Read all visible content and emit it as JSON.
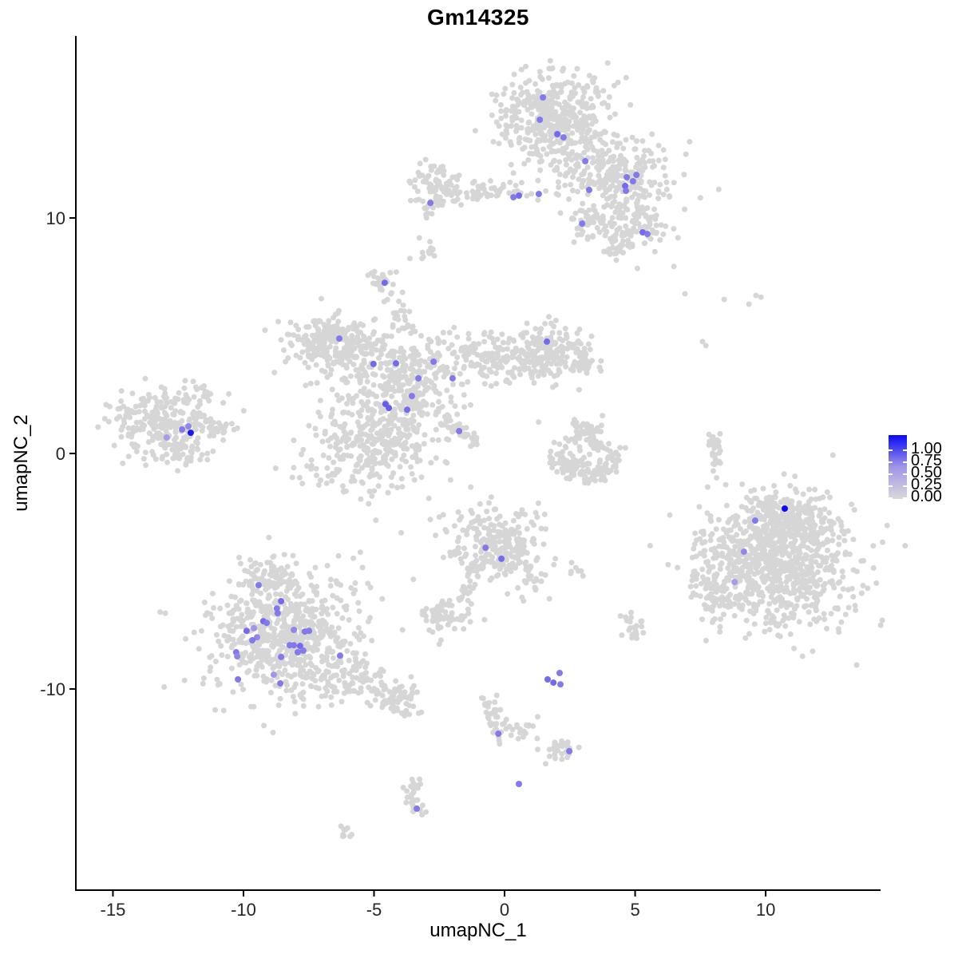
{
  "chart_data": {
    "type": "scatter",
    "title": "Gm14325",
    "xlabel": "umapNC_1",
    "ylabel": "umapNC_2",
    "xlim": [
      -16.42,
      14.4
    ],
    "ylim": [
      -18.54,
      17.73
    ],
    "x_ticks": [
      -15,
      -10,
      -5,
      0,
      5,
      10
    ],
    "y_ticks": [
      -10,
      0,
      10
    ],
    "grid": false,
    "legend_position": "right",
    "legend_ticks": [
      "1.00",
      "0.75",
      "0.50",
      "0.25",
      "0.00"
    ],
    "point_radius_px": 3.5,
    "highlight_radius_px": 4.0,
    "colors": {
      "background": "#ffffff",
      "axis": "#000000",
      "base_point": "#d6d6d6",
      "ramp": [
        [
          0.0,
          "#d9d9d9"
        ],
        [
          0.5,
          "#a195e8"
        ],
        [
          1.0,
          "#0a0af5"
        ]
      ]
    },
    "clusters": [
      {
        "type": "gauss",
        "x": 1.93,
        "y": 14.17,
        "sx": 0.98,
        "sy": 0.92,
        "n": 460
      },
      {
        "type": "gauss",
        "x": 4.37,
        "y": 11.97,
        "sx": 1.01,
        "sy": 0.75,
        "n": 240
      },
      {
        "type": "gauss",
        "x": 4.98,
        "y": 9.76,
        "sx": 0.76,
        "sy": 0.61,
        "n": 120
      },
      {
        "type": "gauss",
        "x": 3.09,
        "y": 10.03,
        "sx": 0.31,
        "sy": 0.41,
        "n": 40
      },
      {
        "type": "gauss",
        "x": -0.61,
        "y": 11.12,
        "sx": 0.8,
        "sy": 0.24,
        "n": 55
      },
      {
        "type": "gauss",
        "x": -2.57,
        "y": 11.39,
        "sx": 0.49,
        "sy": 0.47,
        "n": 75
      },
      {
        "type": "gauss",
        "x": -2.91,
        "y": 10.37,
        "sx": 0.12,
        "sy": 0.27,
        "n": 8
      },
      {
        "type": "gauss",
        "x": 4.37,
        "y": 8.75,
        "sx": 0.37,
        "sy": 0.27,
        "n": 25
      },
      {
        "type": "gauss",
        "x": -4.65,
        "y": 7.32,
        "sx": 0.24,
        "sy": 0.31,
        "n": 28
      },
      {
        "type": "line",
        "x1": -4.19,
        "y1": 6.71,
        "x2": -3.73,
        "y2": 4.85,
        "j": 0.22,
        "n": 22
      },
      {
        "type": "gauss",
        "x": -6.24,
        "y": 4.51,
        "sx": 0.92,
        "sy": 0.61,
        "n": 200
      },
      {
        "type": "gauss",
        "x": -7.25,
        "y": 5.02,
        "sx": 0.55,
        "sy": 0.41,
        "n": 70
      },
      {
        "type": "gauss",
        "x": -3.88,
        "y": 2.98,
        "sx": 1.07,
        "sy": 0.95,
        "n": 300
      },
      {
        "type": "gauss",
        "x": -5.11,
        "y": 0.44,
        "sx": 1.22,
        "sy": 1.02,
        "n": 330
      },
      {
        "type": "gauss",
        "x": -0.21,
        "y": 4.17,
        "sx": 1.38,
        "sy": 0.54,
        "n": 200
      },
      {
        "type": "gauss",
        "x": 1.71,
        "y": 4.34,
        "sx": 0.67,
        "sy": 0.61,
        "n": 140
      },
      {
        "type": "gauss",
        "x": 3.0,
        "y": 3.83,
        "sx": 0.37,
        "sy": 0.34,
        "n": 35
      },
      {
        "type": "line",
        "x1": -2.6,
        "y1": 1.73,
        "x2": -0.89,
        "y2": 0.27,
        "j": 0.15,
        "n": 40
      },
      {
        "type": "gauss",
        "x": -13.06,
        "y": 1.29,
        "sx": 0.98,
        "sy": 0.75,
        "n": 260
      },
      {
        "type": "line",
        "x1": -11.38,
        "y1": 1.12,
        "x2": -10.61,
        "y2": 0.95,
        "j": 0.18,
        "n": 25
      },
      {
        "type": "gauss",
        "x": -11.62,
        "y": 2.64,
        "sx": 0.18,
        "sy": 0.17,
        "n": 10
      },
      {
        "type": "gauss",
        "x": -12.29,
        "y": -0.07,
        "sx": 0.55,
        "sy": 0.27,
        "n": 28
      },
      {
        "type": "gauss",
        "x": 3.09,
        "y": 0.78,
        "sx": 0.43,
        "sy": 0.34,
        "n": 55
      },
      {
        "type": "gauss",
        "x": 3.0,
        "y": -0.07,
        "sx": 0.67,
        "sy": 0.41,
        "n": 35
      },
      {
        "type": "line",
        "x1": 1.93,
        "y1": -0.24,
        "x2": 3.3,
        "y2": -1.08,
        "j": 0.25,
        "n": 60
      },
      {
        "type": "line",
        "x1": 3.3,
        "y1": -1.08,
        "x2": 4.53,
        "y2": -0.14,
        "j": 0.22,
        "n": 45
      },
      {
        "type": "line",
        "x1": 7.98,
        "y1": 0.95,
        "x2": 8.13,
        "y2": -0.58,
        "j": 0.12,
        "n": 32
      },
      {
        "type": "gauss",
        "x": 10.49,
        "y": -4.64,
        "sx": 1.47,
        "sy": 1.36,
        "n": 850
      },
      {
        "type": "gauss",
        "x": 10.64,
        "y": -2.78,
        "sx": 0.92,
        "sy": 0.61,
        "n": 180
      },
      {
        "type": "gauss",
        "x": 8.2,
        "y": -5.32,
        "sx": 0.46,
        "sy": 0.85,
        "n": 70
      },
      {
        "type": "gauss",
        "x": 8.5,
        "y": -3.8,
        "sx": 0.24,
        "sy": 0.68,
        "n": 8
      },
      {
        "type": "gauss",
        "x": -0.21,
        "y": -3.97,
        "sx": 0.92,
        "sy": 0.85,
        "n": 260
      },
      {
        "type": "line",
        "x1": 0.7,
        "y1": -4.47,
        "x2": 1.16,
        "y2": -5.83,
        "j": 0.18,
        "n": 16
      },
      {
        "type": "line",
        "x1": -0.98,
        "y1": -4.64,
        "x2": -1.68,
        "y2": -6.27,
        "j": 0.15,
        "n": 26
      },
      {
        "type": "gauss",
        "x": -2.45,
        "y": -6.92,
        "sx": 0.43,
        "sy": 0.37,
        "n": 55
      },
      {
        "type": "gauss",
        "x": -1.44,
        "y": -7.02,
        "sx": 0.37,
        "sy": 0.27,
        "n": 9
      },
      {
        "type": "gauss",
        "x": -8.47,
        "y": -7.69,
        "sx": 1.38,
        "sy": 1.36,
        "n": 650
      },
      {
        "type": "gauss",
        "x": -8.93,
        "y": -5.32,
        "sx": 0.55,
        "sy": 0.41,
        "n": 70
      },
      {
        "type": "gauss",
        "x": -5.72,
        "y": -9.73,
        "sx": 0.76,
        "sy": 0.51,
        "n": 90
      },
      {
        "type": "gauss",
        "x": -4.19,
        "y": -10.51,
        "sx": 0.55,
        "sy": 0.34,
        "n": 55
      },
      {
        "type": "line",
        "x1": -0.73,
        "y1": -10.31,
        "x2": -0.06,
        "y2": -12.2,
        "j": 0.18,
        "n": 38
      },
      {
        "type": "gauss",
        "x": 0.55,
        "y": -11.83,
        "sx": 0.31,
        "sy": 0.2,
        "n": 16
      },
      {
        "type": "gauss",
        "x": 2.17,
        "y": -12.54,
        "sx": 0.34,
        "sy": 0.24,
        "n": 30
      },
      {
        "type": "line",
        "x1": -3.3,
        "y1": -13.69,
        "x2": -3.67,
        "y2": -14.47,
        "j": 0.15,
        "n": 14
      },
      {
        "type": "line",
        "x1": -3.67,
        "y1": -14.47,
        "x2": -3.21,
        "y2": -15.25,
        "j": 0.15,
        "n": 16
      },
      {
        "type": "gauss",
        "x": -6.09,
        "y": -16.07,
        "sx": 0.18,
        "sy": 0.14,
        "n": 9
      },
      {
        "type": "gauss",
        "x": -2.97,
        "y": 8.68,
        "sx": 0.24,
        "sy": 0.24,
        "n": 13
      },
      {
        "type": "gauss",
        "x": 4.83,
        "y": -7.36,
        "sx": 0.31,
        "sy": 0.41,
        "n": 22
      },
      {
        "type": "gauss",
        "x": 2.69,
        "y": -5.12,
        "sx": 0.18,
        "sy": 0.14,
        "n": 6
      }
    ],
    "singles": [
      [
        6.91,
        6.78
      ],
      [
        8.41,
        6.54
      ],
      [
        9.63,
        6.71
      ],
      [
        9.36,
        6.34
      ],
      [
        9.82,
        6.64
      ],
      [
        7.58,
        4.75
      ],
      [
        7.71,
        4.58
      ],
      [
        8.2,
        0.51
      ],
      [
        8.26,
        -0.41
      ],
      [
        1.25,
        -12.1
      ]
    ],
    "expressing_points": [
      [
        1.47,
        15.12,
        0.6
      ],
      [
        1.35,
        14.17,
        0.6
      ],
      [
        2.02,
        13.56,
        0.65
      ],
      [
        2.26,
        13.42,
        0.6
      ],
      [
        3.09,
        12.41,
        0.6
      ],
      [
        5.05,
        11.83,
        0.6
      ],
      [
        4.68,
        11.73,
        0.6
      ],
      [
        4.92,
        11.56,
        0.6
      ],
      [
        4.62,
        11.36,
        0.65
      ],
      [
        4.65,
        11.15,
        0.6
      ],
      [
        3.24,
        11.19,
        0.6
      ],
      [
        1.31,
        11.02,
        0.6
      ],
      [
        0.55,
        10.95,
        0.65
      ],
      [
        0.34,
        10.88,
        0.6
      ],
      [
        2.97,
        9.76,
        0.6
      ],
      [
        5.29,
        9.39,
        0.65
      ],
      [
        5.47,
        9.32,
        0.6
      ],
      [
        -2.84,
        10.64,
        0.6
      ],
      [
        -4.59,
        7.25,
        0.65
      ],
      [
        -6.33,
        4.88,
        0.6
      ],
      [
        -5.02,
        3.8,
        0.65
      ],
      [
        -4.16,
        3.83,
        0.65
      ],
      [
        -2.72,
        3.9,
        0.6
      ],
      [
        -3.3,
        3.19,
        0.6
      ],
      [
        -1.99,
        3.19,
        0.6
      ],
      [
        -3.55,
        2.44,
        0.6
      ],
      [
        -4.56,
        2.1,
        0.7
      ],
      [
        -4.43,
        1.93,
        0.7
      ],
      [
        -3.73,
        1.86,
        0.65
      ],
      [
        -1.74,
        0.95,
        0.6
      ],
      [
        1.62,
        4.75,
        0.65
      ],
      [
        -12.35,
        1.02,
        0.6
      ],
      [
        -12.11,
        1.15,
        0.55
      ],
      [
        -12.02,
        0.88,
        0.95
      ],
      [
        -12.94,
        0.68,
        0.45
      ],
      [
        10.73,
        -2.34,
        1.0
      ],
      [
        9.6,
        -2.85,
        0.6
      ],
      [
        9.17,
        -4.17,
        0.55
      ],
      [
        8.81,
        -5.46,
        0.45
      ],
      [
        -0.73,
        -4.0,
        0.6
      ],
      [
        -0.12,
        -4.47,
        0.65
      ],
      [
        -9.42,
        -5.59,
        0.6
      ],
      [
        -8.56,
        -6.27,
        0.65
      ],
      [
        -8.72,
        -6.58,
        0.6
      ],
      [
        -8.69,
        -6.78,
        0.6
      ],
      [
        -9.24,
        -7.12,
        0.65
      ],
      [
        -9.11,
        -7.19,
        0.6
      ],
      [
        -9.88,
        -7.53,
        0.65
      ],
      [
        -9.6,
        -7.42,
        0.5
      ],
      [
        -8.07,
        -7.49,
        0.55
      ],
      [
        -7.65,
        -7.56,
        0.6
      ],
      [
        -7.49,
        -7.53,
        0.6
      ],
      [
        -9.48,
        -7.8,
        0.55
      ],
      [
        -9.66,
        -7.93,
        0.6
      ],
      [
        -10.28,
        -8.44,
        0.6
      ],
      [
        -10.24,
        -8.61,
        0.55
      ],
      [
        -8.23,
        -8.14,
        0.6
      ],
      [
        -8.07,
        -8.14,
        0.6
      ],
      [
        -7.83,
        -8.17,
        0.65
      ],
      [
        -7.71,
        -8.37,
        0.6
      ],
      [
        -7.92,
        -8.44,
        0.6
      ],
      [
        -8.56,
        -8.64,
        0.6
      ],
      [
        -6.3,
        -8.58,
        0.6
      ],
      [
        -10.21,
        -9.59,
        0.6
      ],
      [
        -8.84,
        -9.39,
        0.5
      ],
      [
        -8.59,
        -9.76,
        0.6
      ],
      [
        1.65,
        -9.59,
        0.65
      ],
      [
        1.87,
        -9.73,
        0.65
      ],
      [
        2.14,
        -9.8,
        0.6
      ],
      [
        2.11,
        -9.32,
        0.6
      ],
      [
        -0.24,
        -11.9,
        0.6
      ],
      [
        2.48,
        -12.64,
        0.6
      ],
      [
        0.55,
        -14.03,
        0.6
      ],
      [
        -3.36,
        -15.08,
        0.6
      ]
    ]
  }
}
